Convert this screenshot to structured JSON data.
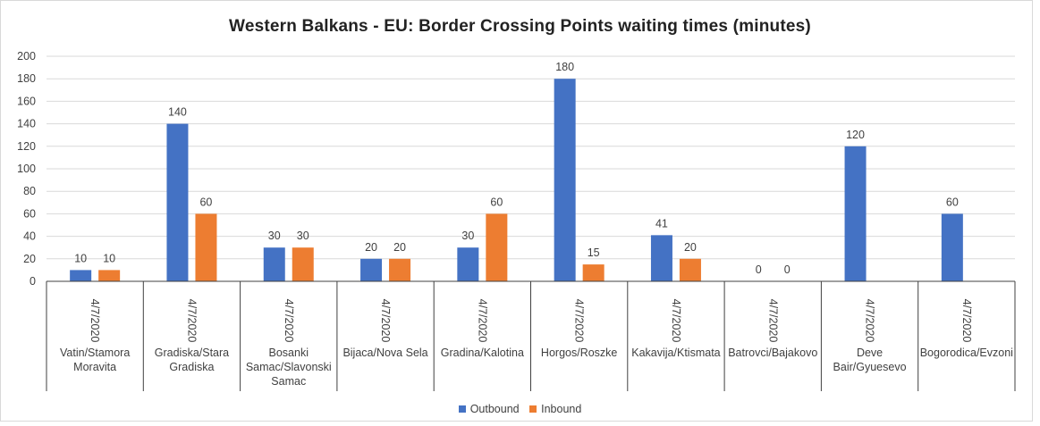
{
  "chart_data": {
    "type": "bar",
    "title": "Western Balkans - EU: Border Crossing Points waiting times (minutes)",
    "xlabel": "",
    "ylabel": "",
    "ylim": [
      0,
      200
    ],
    "yticks": [
      "0",
      "20",
      "40",
      "60",
      "80",
      "100",
      "120",
      "140",
      "160",
      "180",
      "200"
    ],
    "grid": true,
    "legend_position": "bottom",
    "date_label": "4/7/2020",
    "categories": [
      {
        "date": "4/7/2020",
        "lines": [
          "Vatin/Stamora",
          "Moravita"
        ]
      },
      {
        "date": "4/7/2020",
        "lines": [
          "Gradiska/Stara",
          "Gradiska"
        ]
      },
      {
        "date": "4/7/2020",
        "lines": [
          "Bosanki",
          "Samac/Slavonski",
          "Samac"
        ]
      },
      {
        "date": "4/7/2020",
        "lines": [
          "Bijaca/Nova Sela"
        ]
      },
      {
        "date": "4/7/2020",
        "lines": [
          "Gradina/Kalotina"
        ]
      },
      {
        "date": "4/7/2020",
        "lines": [
          "Horgos/Roszke"
        ]
      },
      {
        "date": "4/7/2020",
        "lines": [
          "Kakavija/Ktismata"
        ]
      },
      {
        "date": "4/7/2020",
        "lines": [
          "Batrovci/Bajakovo"
        ]
      },
      {
        "date": "4/7/2020",
        "lines": [
          "Deve",
          "Bair/Gyuesevo"
        ]
      },
      {
        "date": "4/7/2020",
        "lines": [
          "Bogorodica/Evzoni"
        ]
      }
    ],
    "series": [
      {
        "name": "Outbound",
        "color": "#4472c4",
        "values": [
          10,
          140,
          30,
          20,
          30,
          180,
          41,
          0,
          120,
          60
        ]
      },
      {
        "name": "Inbound",
        "color": "#ed7d31",
        "values": [
          10,
          60,
          30,
          20,
          60,
          15,
          20,
          0,
          null,
          null
        ]
      }
    ]
  }
}
